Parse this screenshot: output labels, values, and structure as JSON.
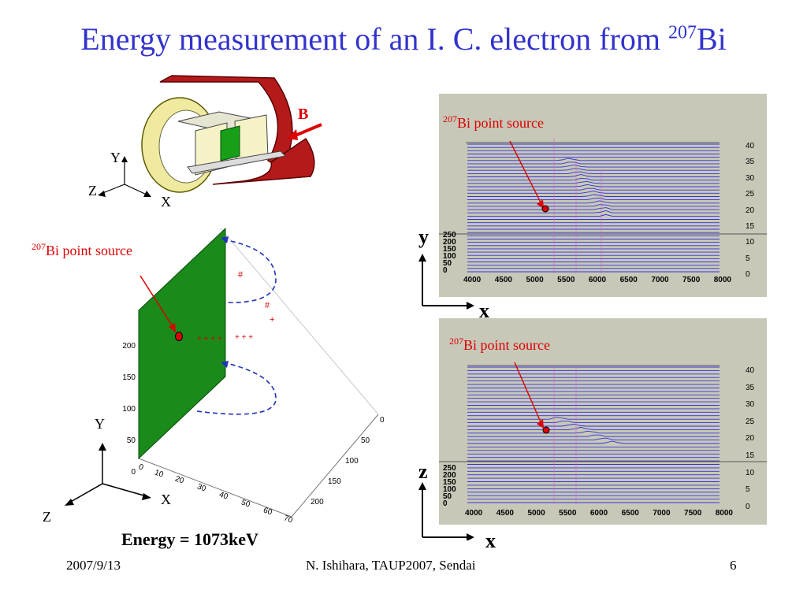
{
  "slide": {
    "title_main": "Energy measurement of an I. C. electron from ",
    "title_sup": "207",
    "title_tail": "Bi"
  },
  "detector": {
    "b_label": "B",
    "axis_y": "Y",
    "axis_z": "Z",
    "axis_x": "X"
  },
  "plot3d": {
    "source_sup": "207",
    "source_label": "Bi point source",
    "ticks_vertical": [
      "200",
      "150",
      "100",
      "50",
      "0"
    ],
    "ticks_front": [
      "0",
      "10",
      "20",
      "30",
      "40",
      "50",
      "60",
      "70"
    ],
    "ticks_side": [
      "0",
      "50",
      "100",
      "150",
      "200"
    ],
    "axis_y": "Y",
    "axis_x": "X",
    "axis_z": "Z",
    "energy": "Energy = 1073keV"
  },
  "panel_top": {
    "source_sup": "207",
    "source_label": "Bi point source",
    "right_ticks": [
      "40",
      "35",
      "30",
      "25",
      "20",
      "15",
      "10",
      "5",
      "0"
    ],
    "left_ticks": [
      "250",
      "200",
      "150",
      "100",
      "50",
      "0"
    ],
    "x_ticks": [
      "4000",
      "4500",
      "5000",
      "5500",
      "6000",
      "6500",
      "7000",
      "7500",
      "8000"
    ],
    "axis_v": "y",
    "axis_h": "x"
  },
  "panel_bottom": {
    "source_sup": "207",
    "source_label": "Bi point source",
    "right_ticks": [
      "40",
      "35",
      "30",
      "25",
      "20",
      "15",
      "10",
      "5",
      "0"
    ],
    "left_ticks": [
      "250",
      "200",
      "150",
      "100",
      "50",
      "0"
    ],
    "x_ticks": [
      "4000",
      "4500",
      "5000",
      "5500",
      "6000",
      "6500",
      "7000",
      "7500",
      "8000"
    ],
    "axis_v": "z",
    "axis_h": "x"
  },
  "footer": {
    "date": "2007/9/13",
    "author": "N. Ishihara, TAUP2007, Sendai",
    "page": "6"
  },
  "colors": {
    "title": "#3333cc",
    "source": "#dd0000",
    "plane": "#1a8a1a",
    "trace": "#3333dd",
    "magnet": "#b01818"
  }
}
